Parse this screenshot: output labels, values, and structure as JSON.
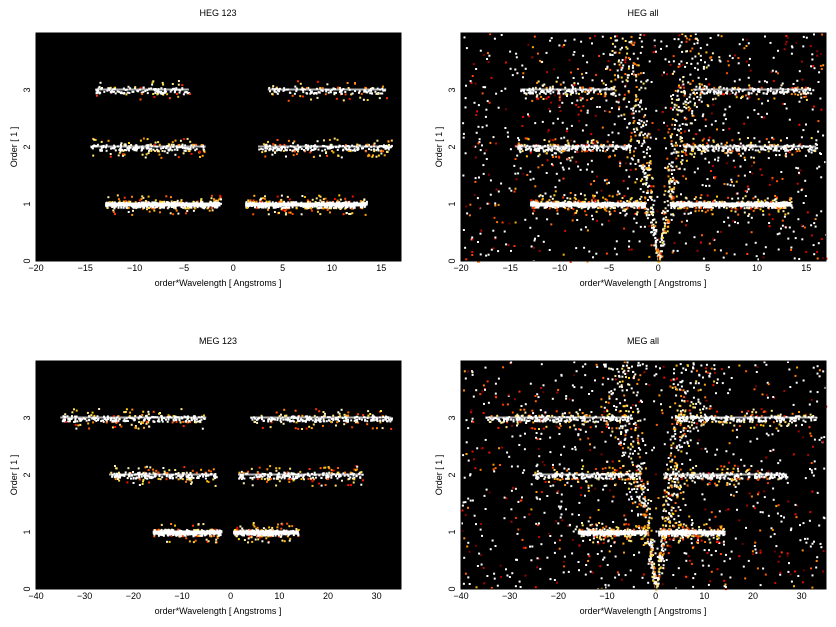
{
  "chart_data": [
    {
      "type": "heatmap",
      "title": "HEG 123",
      "xlabel": "order*Wavelength [ Angstroms ]",
      "ylabel": "Order [ 1 ]",
      "xlim": [
        -20,
        17
      ],
      "ylim": [
        0,
        4
      ],
      "xticks": [
        -20,
        -15,
        -10,
        -5,
        0,
        5,
        10,
        15
      ],
      "yticks": [
        0,
        1,
        2,
        3
      ],
      "colormap": "black-red-yellow-white",
      "bands": [
        {
          "order": 1,
          "x_ranges": [
            [
              -13,
              -1.3
            ],
            [
              1.2,
              13.5
            ]
          ],
          "intensity": "high"
        },
        {
          "order": 2,
          "x_ranges": [
            [
              -14.5,
              -2.8
            ],
            [
              2.5,
              16
            ]
          ],
          "intensity": "medium"
        },
        {
          "order": 3,
          "x_ranges": [
            [
              -14,
              -4.5
            ],
            [
              3.5,
              15.5
            ]
          ],
          "intensity": "low"
        }
      ],
      "dispersed_background": false
    },
    {
      "type": "heatmap",
      "title": "HEG all",
      "xlabel": "order*Wavelength [ Angstroms ]",
      "ylabel": "Order [ 1 ]",
      "xlim": [
        -20,
        17
      ],
      "ylim": [
        0,
        4
      ],
      "xticks": [
        -20,
        -15,
        -10,
        -5,
        0,
        5,
        10,
        15
      ],
      "yticks": [
        0,
        1,
        2,
        3
      ],
      "colormap": "black-red-yellow-white",
      "bands": [
        {
          "order": 1,
          "x_ranges": [
            [
              -13,
              -1.3
            ],
            [
              1.2,
              13.5
            ]
          ],
          "intensity": "high"
        },
        {
          "order": 2,
          "x_ranges": [
            [
              -14.5,
              -2.8
            ],
            [
              2.5,
              16
            ]
          ],
          "intensity": "medium"
        },
        {
          "order": 3,
          "x_ranges": [
            [
              -14,
              -4.5
            ],
            [
              3.5,
              15.5
            ]
          ],
          "intensity": "low"
        }
      ],
      "dispersed_background": true
    },
    {
      "type": "heatmap",
      "title": "MEG 123",
      "xlabel": "order*Wavelength [ Angstroms ]",
      "ylabel": "Order [ 1 ]",
      "xlim": [
        -40,
        35
      ],
      "ylim": [
        0,
        4
      ],
      "xticks": [
        -40,
        -30,
        -20,
        -10,
        0,
        10,
        20,
        30
      ],
      "yticks": [
        0,
        1,
        2,
        3
      ],
      "colormap": "black-red-yellow-white",
      "bands": [
        {
          "order": 1,
          "x_ranges": [
            [
              -16,
              -2
            ],
            [
              0.5,
              14
            ]
          ],
          "intensity": "high"
        },
        {
          "order": 2,
          "x_ranges": [
            [
              -25,
              -3
            ],
            [
              1.5,
              27
            ]
          ],
          "intensity": "medium"
        },
        {
          "order": 3,
          "x_ranges": [
            [
              -35,
              -5
            ],
            [
              4,
              33
            ]
          ],
          "intensity": "medium"
        }
      ],
      "dispersed_background": false
    },
    {
      "type": "heatmap",
      "title": "MEG all",
      "xlabel": "order*Wavelength [ Angstroms ]",
      "ylabel": "Order [ 1 ]",
      "xlim": [
        -40,
        35
      ],
      "ylim": [
        0,
        4
      ],
      "xticks": [
        -40,
        -30,
        -20,
        -10,
        0,
        10,
        20,
        30
      ],
      "yticks": [
        0,
        1,
        2,
        3
      ],
      "colormap": "black-red-yellow-white",
      "bands": [
        {
          "order": 1,
          "x_ranges": [
            [
              -16,
              -2
            ],
            [
              0.5,
              14
            ]
          ],
          "intensity": "high"
        },
        {
          "order": 2,
          "x_ranges": [
            [
              -25,
              -3
            ],
            [
              1.5,
              27
            ]
          ],
          "intensity": "medium"
        },
        {
          "order": 3,
          "x_ranges": [
            [
              -35,
              -5
            ],
            [
              4,
              33
            ]
          ],
          "intensity": "medium"
        }
      ],
      "dispersed_background": true
    }
  ]
}
